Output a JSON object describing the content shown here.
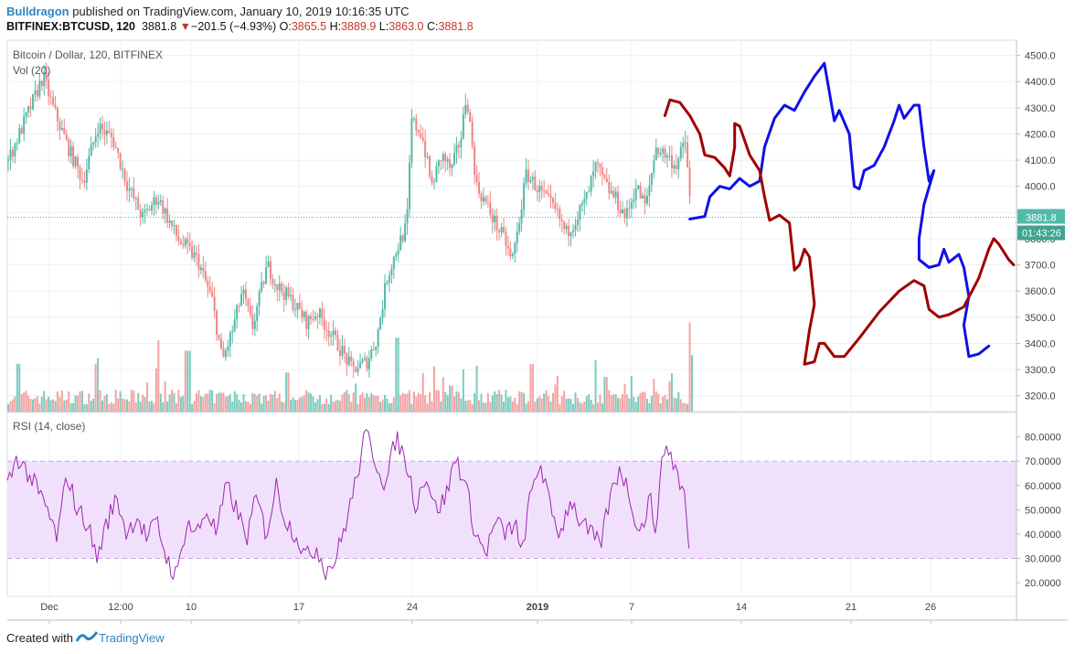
{
  "header": {
    "author": "Bulldragon",
    "published": "published on TradingView.com, January 10, 2019 10:16:35 UTC",
    "symbol": "BITFINEX:BTCUSD, 120",
    "last": "3881.8",
    "change_arrow": "▼",
    "change": "−201.5 (−4.93%)",
    "o_label": "O:",
    "o": "3865.5",
    "h_label": "H:",
    "h": "3889.9",
    "l_label": "L:",
    "l": "3863.0",
    "c_label": "C:",
    "c": "3881.8"
  },
  "footer": {
    "created": "Created with",
    "brand": "TradingView",
    "logo_icon": "tradingview-logo-icon"
  },
  "colors": {
    "up": "#53b9a8",
    "down": "#ef8585",
    "rsi_line": "#9c27b0",
    "rsi_band": "#f1e0fb",
    "last_price_box": "#53b9a8",
    "drawing_blue": "#1010e8",
    "drawing_red": "#a00000",
    "grid": "#eef0f3"
  },
  "chart_data": [
    {
      "type": "candlestick",
      "title": "Bitcoin / Dollar, 120, BITFINEX",
      "volume_label": "Vol (20)",
      "ylim": [
        3150,
        4530
      ],
      "yticks": [
        "4500.0",
        "4400.0",
        "4300.0",
        "4200.0",
        "4100.0",
        "4000.0",
        "3900.0",
        "3800.0",
        "3700.0",
        "3600.0",
        "3500.0",
        "3400.0",
        "3300.0",
        "3200.0"
      ],
      "ytick_values": [
        4500,
        4400,
        4300,
        4200,
        4100,
        4000,
        3900,
        3800,
        3700,
        3600,
        3500,
        3400,
        3300,
        3200
      ],
      "xticks": [
        "Dec",
        "12:00",
        "10",
        "17",
        "24",
        "2019",
        "7",
        "14",
        "21",
        "26"
      ],
      "last_price_label": "3881.8",
      "countdown_label": "01:43:26",
      "price_path": [
        [
          0,
          4100
        ],
        [
          4,
          4280
        ],
        [
          7,
          4420
        ],
        [
          9,
          4300
        ],
        [
          12,
          4150
        ],
        [
          15,
          4020
        ],
        [
          18,
          4230
        ],
        [
          21,
          4180
        ],
        [
          24,
          4000
        ],
        [
          27,
          3880
        ],
        [
          30,
          3960
        ],
        [
          34,
          3800
        ],
        [
          38,
          3720
        ],
        [
          41,
          3560
        ],
        [
          43,
          3330
        ],
        [
          45,
          3450
        ],
        [
          47,
          3600
        ],
        [
          49,
          3460
        ],
        [
          52,
          3700
        ],
        [
          54,
          3620
        ],
        [
          57,
          3560
        ],
        [
          60,
          3480
        ],
        [
          62,
          3520
        ],
        [
          64,
          3460
        ],
        [
          67,
          3370
        ],
        [
          69,
          3300
        ],
        [
          72,
          3330
        ],
        [
          74,
          3420
        ],
        [
          76,
          3650
        ],
        [
          78,
          3760
        ],
        [
          80,
          3850
        ],
        [
          81,
          4250
        ],
        [
          83,
          4200
        ],
        [
          85,
          4000
        ],
        [
          87,
          4120
        ],
        [
          89,
          4060
        ],
        [
          91,
          4200
        ],
        [
          92,
          4360
        ],
        [
          94,
          4000
        ],
        [
          96,
          3930
        ],
        [
          98,
          3850
        ],
        [
          100,
          3780
        ],
        [
          101,
          3710
        ],
        [
          102,
          3800
        ],
        [
          104,
          4050
        ],
        [
          106,
          4000
        ],
        [
          108,
          3950
        ],
        [
          110,
          3900
        ],
        [
          112,
          3820
        ],
        [
          114,
          3880
        ],
        [
          116,
          3950
        ],
        [
          118,
          4080
        ],
        [
          120,
          4000
        ],
        [
          122,
          3950
        ],
        [
          124,
          3880
        ],
        [
          126,
          4000
        ],
        [
          128,
          3920
        ],
        [
          130,
          4150
        ],
        [
          132,
          4120
        ],
        [
          134,
          4080
        ],
        [
          136,
          4170
        ],
        [
          137,
          3900
        ]
      ],
      "volume_spikes": [
        [
          2,
          0.55
        ],
        [
          30,
          0.5
        ],
        [
          36,
          0.7
        ],
        [
          56,
          0.45
        ],
        [
          78,
          0.85
        ],
        [
          89,
          0.3
        ],
        [
          105,
          0.55
        ],
        [
          120,
          0.4
        ],
        [
          133,
          0.35
        ],
        [
          137,
          0.65
        ]
      ],
      "drawings": [
        {
          "color": "blue",
          "points": [
            [
              137,
              3875
            ],
            [
              140,
              3885
            ],
            [
              141,
              3960
            ],
            [
              143,
              4000
            ],
            [
              145,
              3990
            ],
            [
              147,
              4030
            ],
            [
              149,
              4000
            ],
            [
              151,
              4020
            ],
            [
              152,
              4150
            ],
            [
              154,
              4260
            ],
            [
              156,
              4310
            ],
            [
              158,
              4290
            ],
            [
              160,
              4360
            ],
            [
              162,
              4420
            ],
            [
              164,
              4470
            ],
            [
              165,
              4360
            ],
            [
              166,
              4250
            ],
            [
              167,
              4290
            ],
            [
              169,
              4200
            ],
            [
              170,
              4000
            ],
            [
              171,
              3990
            ],
            [
              172,
              4060
            ],
            [
              174,
              4080
            ],
            [
              176,
              4150
            ],
            [
              178,
              4250
            ],
            [
              179,
              4310
            ],
            [
              180,
              4260
            ],
            [
              182,
              4310
            ],
            [
              183,
              4310
            ],
            [
              184,
              4150
            ],
            [
              185,
              4020
            ],
            [
              186,
              4060
            ],
            [
              184,
              3930
            ],
            [
              183,
              3800
            ],
            [
              183,
              3720
            ],
            [
              185,
              3690
            ],
            [
              187,
              3700
            ],
            [
              188,
              3760
            ],
            [
              189,
              3710
            ],
            [
              191,
              3740
            ],
            [
              192,
              3690
            ],
            [
              193,
              3580
            ],
            [
              192,
              3470
            ],
            [
              193,
              3350
            ],
            [
              195,
              3360
            ],
            [
              197,
              3390
            ]
          ]
        },
        {
          "color": "red",
          "points": [
            [
              132,
              4270
            ],
            [
              133,
              4330
            ],
            [
              135,
              4320
            ],
            [
              137,
              4270
            ],
            [
              139,
              4200
            ],
            [
              140,
              4120
            ],
            [
              142,
              4110
            ],
            [
              144,
              4070
            ],
            [
              145,
              4040
            ],
            [
              146,
              4150
            ],
            [
              146,
              4240
            ],
            [
              147,
              4230
            ],
            [
              149,
              4120
            ],
            [
              151,
              4060
            ],
            [
              152,
              3960
            ],
            [
              153,
              3870
            ],
            [
              155,
              3890
            ],
            [
              157,
              3860
            ],
            [
              158,
              3680
            ],
            [
              159,
              3700
            ],
            [
              160,
              3760
            ],
            [
              161,
              3730
            ],
            [
              162,
              3550
            ],
            [
              161,
              3450
            ],
            [
              160,
              3320
            ],
            [
              162,
              3330
            ],
            [
              163,
              3400
            ],
            [
              164,
              3400
            ],
            [
              166,
              3350
            ],
            [
              168,
              3350
            ],
            [
              171,
              3420
            ],
            [
              175,
              3520
            ],
            [
              179,
              3600
            ],
            [
              182,
              3640
            ],
            [
              184,
              3620
            ],
            [
              185,
              3530
            ],
            [
              187,
              3500
            ],
            [
              189,
              3510
            ],
            [
              192,
              3540
            ],
            [
              195,
              3650
            ],
            [
              197,
              3760
            ],
            [
              198,
              3800
            ],
            [
              199,
              3780
            ],
            [
              201,
              3720
            ],
            [
              202,
              3700
            ]
          ]
        }
      ]
    },
    {
      "type": "line",
      "title": "RSI (14, close)",
      "ylim": [
        17,
        84
      ],
      "yticks": [
        "80.0000",
        "70.0000",
        "60.0000",
        "50.0000",
        "40.0000",
        "30.0000",
        "20.0000"
      ],
      "ytick_values": [
        80,
        70,
        60,
        50,
        40,
        30,
        20
      ],
      "band": [
        30,
        70
      ],
      "rsi_path": [
        [
          0,
          60
        ],
        [
          2,
          72
        ],
        [
          5,
          62
        ],
        [
          8,
          50
        ],
        [
          10,
          38
        ],
        [
          12,
          65
        ],
        [
          14,
          50
        ],
        [
          16,
          45
        ],
        [
          18,
          30
        ],
        [
          20,
          45
        ],
        [
          22,
          55
        ],
        [
          24,
          40
        ],
        [
          26,
          48
        ],
        [
          28,
          38
        ],
        [
          30,
          45
        ],
        [
          32,
          30
        ],
        [
          34,
          22
        ],
        [
          36,
          45
        ],
        [
          38,
          40
        ],
        [
          40,
          50
        ],
        [
          42,
          40
        ],
        [
          44,
          60
        ],
        [
          46,
          50
        ],
        [
          48,
          38
        ],
        [
          50,
          55
        ],
        [
          52,
          40
        ],
        [
          54,
          60
        ],
        [
          56,
          45
        ],
        [
          58,
          40
        ],
        [
          60,
          30
        ],
        [
          62,
          35
        ],
        [
          64,
          25
        ],
        [
          66,
          30
        ],
        [
          68,
          45
        ],
        [
          70,
          62
        ],
        [
          72,
          82
        ],
        [
          74,
          70
        ],
        [
          76,
          60
        ],
        [
          78,
          80
        ],
        [
          80,
          70
        ],
        [
          82,
          52
        ],
        [
          84,
          65
        ],
        [
          86,
          50
        ],
        [
          88,
          55
        ],
        [
          90,
          72
        ],
        [
          92,
          60
        ],
        [
          94,
          40
        ],
        [
          96,
          32
        ],
        [
          98,
          45
        ],
        [
          100,
          40
        ],
        [
          102,
          45
        ],
        [
          103,
          30
        ],
        [
          105,
          55
        ],
        [
          107,
          70
        ],
        [
          109,
          50
        ],
        [
          111,
          40
        ],
        [
          113,
          55
        ],
        [
          115,
          45
        ],
        [
          117,
          40
        ],
        [
          119,
          35
        ],
        [
          121,
          55
        ],
        [
          123,
          68
        ],
        [
          125,
          55
        ],
        [
          127,
          40
        ],
        [
          129,
          55
        ],
        [
          130,
          42
        ],
        [
          132,
          78
        ],
        [
          134,
          68
        ],
        [
          136,
          55
        ],
        [
          137,
          28
        ]
      ]
    }
  ]
}
